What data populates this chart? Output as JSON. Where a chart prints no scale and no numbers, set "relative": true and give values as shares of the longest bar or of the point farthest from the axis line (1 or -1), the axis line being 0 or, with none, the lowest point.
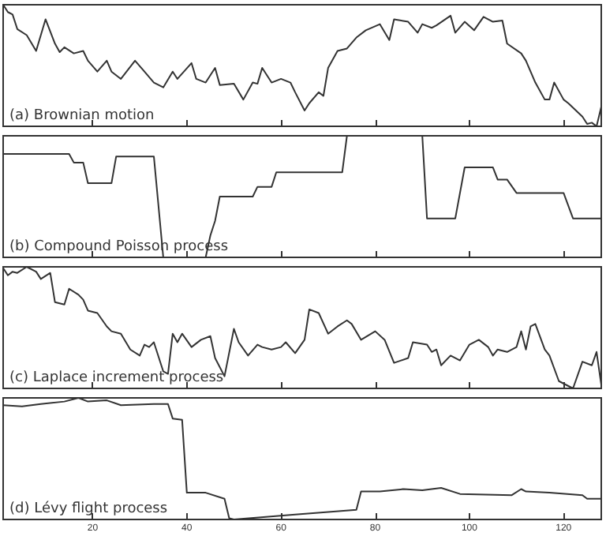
{
  "chart_data": [
    {
      "type": "line",
      "title": "(a) Brownian motion",
      "relative": true,
      "color": "#333333",
      "xlim": [
        1,
        128
      ],
      "xticks": [
        20,
        40,
        60,
        80,
        100,
        120
      ],
      "tick_labels": false,
      "x": [
        1,
        2,
        3,
        4,
        6,
        8,
        10,
        12,
        13,
        14,
        16,
        18,
        19,
        21,
        23,
        24,
        26,
        29,
        31,
        33,
        35,
        37,
        38,
        41,
        42,
        44,
        46,
        47,
        50,
        52,
        54,
        55,
        56,
        58,
        60,
        62,
        63,
        65,
        66,
        68,
        69,
        70,
        72,
        74,
        76,
        78,
        81,
        83,
        84,
        87,
        89,
        90,
        92,
        93,
        96,
        97,
        99,
        101,
        103,
        105,
        107,
        108,
        111,
        112,
        114,
        116,
        117,
        118,
        120,
        121,
        124,
        125,
        126,
        127,
        128
      ],
      "values": [
        1,
        0.94,
        0.92,
        0.8,
        0.75,
        0.62,
        0.88,
        0.68,
        0.61,
        0.65,
        0.6,
        0.62,
        0.54,
        0.45,
        0.54,
        0.45,
        0.39,
        0.54,
        0.45,
        0.36,
        0.32,
        0.45,
        0.39,
        0.52,
        0.39,
        0.36,
        0.48,
        0.34,
        0.35,
        0.22,
        0.36,
        0.35,
        0.48,
        0.36,
        0.39,
        0.36,
        0.28,
        0.13,
        0.19,
        0.28,
        0.25,
        0.48,
        0.62,
        0.64,
        0.73,
        0.79,
        0.84,
        0.71,
        0.88,
        0.86,
        0.77,
        0.84,
        0.81,
        0.83,
        0.91,
        0.77,
        0.86,
        0.79,
        0.9,
        0.86,
        0.87,
        0.68,
        0.6,
        0.54,
        0.36,
        0.22,
        0.22,
        0.36,
        0.22,
        0.19,
        0.08,
        0.02,
        0.03,
        0,
        0.16
      ]
    },
    {
      "type": "line",
      "title": "(b) Compound Poisson process",
      "relative": true,
      "color": "#333333",
      "xlim": [
        1,
        128
      ],
      "xticks": [
        20,
        40,
        60,
        80,
        100,
        120
      ],
      "tick_labels": false,
      "x": [
        1,
        15,
        16,
        18,
        19,
        24,
        25,
        33,
        35,
        44,
        45,
        46,
        47,
        54,
        55,
        58,
        59,
        73,
        74,
        90,
        91,
        97,
        99,
        105,
        106,
        108,
        110,
        120,
        122,
        128
      ],
      "values": [
        0.85,
        0.85,
        0.78,
        0.78,
        0.61,
        0.61,
        0.83,
        0.83,
        0,
        0,
        0.18,
        0.3,
        0.5,
        0.5,
        0.58,
        0.58,
        0.7,
        0.7,
        1,
        1,
        0.32,
        0.32,
        0.74,
        0.74,
        0.64,
        0.64,
        0.53,
        0.53,
        0.32,
        0.32
      ]
    },
    {
      "type": "line",
      "title": "(c) Laplace increment process",
      "relative": true,
      "color": "#333333",
      "xlim": [
        1,
        128
      ],
      "xticks": [
        20,
        40,
        60,
        80,
        100,
        120
      ],
      "tick_labels": false,
      "x": [
        1,
        2,
        3,
        4,
        6,
        8,
        9,
        11,
        12,
        14,
        15,
        17,
        18,
        19,
        21,
        23,
        24,
        26,
        28,
        30,
        31,
        32,
        33,
        35,
        36,
        37,
        38,
        39,
        41,
        43,
        45,
        46,
        48,
        50,
        51,
        53,
        55,
        56,
        58,
        60,
        61,
        63,
        65,
        66,
        68,
        70,
        72,
        74,
        75,
        77,
        80,
        82,
        84,
        87,
        88,
        91,
        92,
        93,
        94,
        96,
        98,
        100,
        102,
        104,
        105,
        106,
        108,
        110,
        111,
        112,
        113,
        114,
        116,
        117,
        119,
        122,
        124,
        126,
        127,
        128
      ],
      "values": [
        0.99,
        0.93,
        0.96,
        0.95,
        1,
        0.96,
        0.9,
        0.95,
        0.71,
        0.69,
        0.82,
        0.77,
        0.73,
        0.64,
        0.62,
        0.51,
        0.47,
        0.45,
        0.32,
        0.27,
        0.36,
        0.34,
        0.38,
        0.14,
        0.12,
        0.45,
        0.38,
        0.45,
        0.34,
        0.4,
        0.43,
        0.25,
        0.1,
        0.49,
        0.38,
        0.27,
        0.36,
        0.34,
        0.32,
        0.34,
        0.38,
        0.29,
        0.4,
        0.65,
        0.62,
        0.45,
        0.51,
        0.56,
        0.53,
        0.4,
        0.47,
        0.4,
        0.21,
        0.25,
        0.38,
        0.36,
        0.3,
        0.32,
        0.19,
        0.27,
        0.23,
        0.36,
        0.4,
        0.34,
        0.27,
        0.32,
        0.3,
        0.34,
        0.47,
        0.32,
        0.51,
        0.53,
        0.32,
        0.27,
        0.06,
        0,
        0.22,
        0.19,
        0.3,
        0.03
      ]
    },
    {
      "type": "line",
      "title": "(d) Lévy flight process",
      "relative": true,
      "color": "#333333",
      "xlim": [
        1,
        128
      ],
      "xticks": [
        20,
        40,
        60,
        80,
        100,
        120
      ],
      "tick_labels": "x",
      "x": [
        1,
        5,
        9,
        14,
        17,
        19,
        23,
        26,
        33,
        36,
        37,
        39,
        40,
        44,
        48,
        49,
        50,
        63,
        76,
        77,
        81,
        86,
        90,
        94,
        98,
        109,
        111,
        112,
        117,
        124,
        125,
        128
      ],
      "values": [
        0.94,
        0.93,
        0.95,
        0.97,
        1,
        0.97,
        0.98,
        0.94,
        0.95,
        0.95,
        0.83,
        0.82,
        0.22,
        0.22,
        0.17,
        0.01,
        0,
        0.04,
        0.08,
        0.23,
        0.23,
        0.25,
        0.24,
        0.26,
        0.21,
        0.2,
        0.25,
        0.23,
        0.22,
        0.2,
        0.17,
        0.17
      ]
    }
  ]
}
